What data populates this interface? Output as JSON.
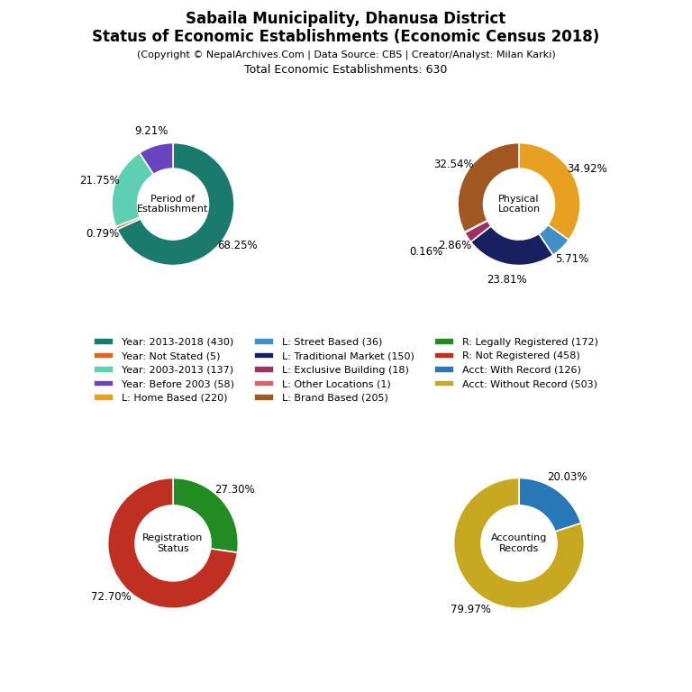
{
  "title": "Sabaila Municipality, Dhanusa District\nStatus of Economic Establishments (Economic Census 2018)",
  "subtitle": "(Copyright © NepalArchives.Com | Data Source: CBS | Creator/Analyst: Milan Karki)",
  "annotations": [
    "Total Economic Establishments: 630"
  ],
  "legend": "center",
  "chart_data": [
    {
      "type": "pie",
      "title": "Period of\nEstablishment",
      "categories": [
        "Year: 2013-2018 (430)",
        "Year: Not Stated (5)",
        "Year: 2003-2013 (137)",
        "Year: Before 2003 (58)"
      ],
      "values": [
        68.25,
        0.79,
        21.75,
        9.21
      ],
      "value_labels": [
        "68.25%",
        "0.79%",
        "21.75%",
        "9.21%"
      ],
      "colors": [
        "#1a7a6e",
        "#d4692a",
        "#5ecfb0",
        "#6a44c0"
      ],
      "data_labels": true
    },
    {
      "type": "pie",
      "title": "Physical\nLocation",
      "categories": [
        "L: Home Based (220)",
        "L: Street Based (36)",
        "L: Traditional Market (150)",
        "L: Exclusive Building (18)",
        "L: Other Locations (1)",
        "L: Brand Based (205)"
      ],
      "values": [
        34.92,
        5.71,
        23.81,
        2.86,
        0.16,
        32.54
      ],
      "value_labels": [
        "34.92%",
        "5.71%",
        "23.81%",
        "2.86%",
        "0.16%",
        "32.54%"
      ],
      "colors": [
        "#e8a020",
        "#4090c8",
        "#182060",
        "#a03060",
        "#e06070",
        "#a05820"
      ],
      "data_labels": true
    },
    {
      "type": "pie",
      "title": "Registration\nStatus",
      "categories": [
        "R: Legally Registered (172)",
        "R: Not Registered (458)"
      ],
      "values": [
        27.3,
        72.7
      ],
      "value_labels": [
        "27.30%",
        "72.70%"
      ],
      "colors": [
        "#228B22",
        "#c03020"
      ],
      "data_labels": true
    },
    {
      "type": "pie",
      "title": "Accounting\nRecords",
      "categories": [
        "Acct: With Record (126)",
        "Acct: Without Record (503)"
      ],
      "values": [
        20.03,
        79.97
      ],
      "value_labels": [
        "20.03%",
        "79.97%"
      ],
      "colors": [
        "#2878b8",
        "#c8a820"
      ],
      "data_labels": true
    }
  ]
}
